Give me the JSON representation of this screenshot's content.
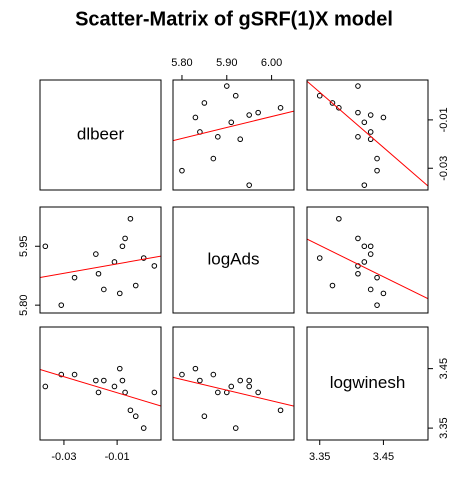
{
  "chart_data": {
    "type": "scatter_matrix",
    "title": "Scatter-Matrix of gSRF(1)X model",
    "point_color": "#000000",
    "line_color": "#ff0000",
    "variables": [
      {
        "name": "dlbeer",
        "values": [
          -0.037,
          -0.031,
          -0.026,
          -0.018,
          -0.017,
          -0.015,
          -0.011,
          -0.009,
          -0.008,
          -0.007,
          -0.005,
          0.0,
          0.004,
          -0.003
        ],
        "lim": [
          -0.039,
          0.0065
        ],
        "xticks": [
          -0.03,
          -0.01
        ],
        "yticks": [
          -0.03,
          -0.01
        ]
      },
      {
        "name": "logAds",
        "values": [
          5.95,
          5.8,
          5.87,
          5.93,
          5.88,
          5.84,
          5.91,
          5.83,
          5.95,
          5.97,
          6.02,
          5.92,
          5.9,
          5.85
        ],
        "lim": [
          5.78,
          6.05
        ],
        "xticks": [
          {
            "value": 5.8,
            "label": "5.80"
          },
          {
            "value": 5.9,
            "label": "5.90"
          },
          {
            "value": 6.0,
            "label": "6.00"
          }
        ],
        "yticks": [
          {
            "value": 5.8,
            "label": "5.80"
          },
          5.95
        ]
      },
      {
        "name": "logwinesh",
        "values": [
          3.42,
          3.44,
          3.44,
          3.43,
          3.41,
          3.43,
          3.42,
          3.45,
          3.43,
          3.41,
          3.38,
          3.35,
          3.41,
          3.37
        ],
        "lim": [
          3.33,
          3.52
        ],
        "xticks": [
          3.35,
          3.45
        ],
        "yticks": [
          3.35,
          3.45
        ]
      }
    ]
  }
}
